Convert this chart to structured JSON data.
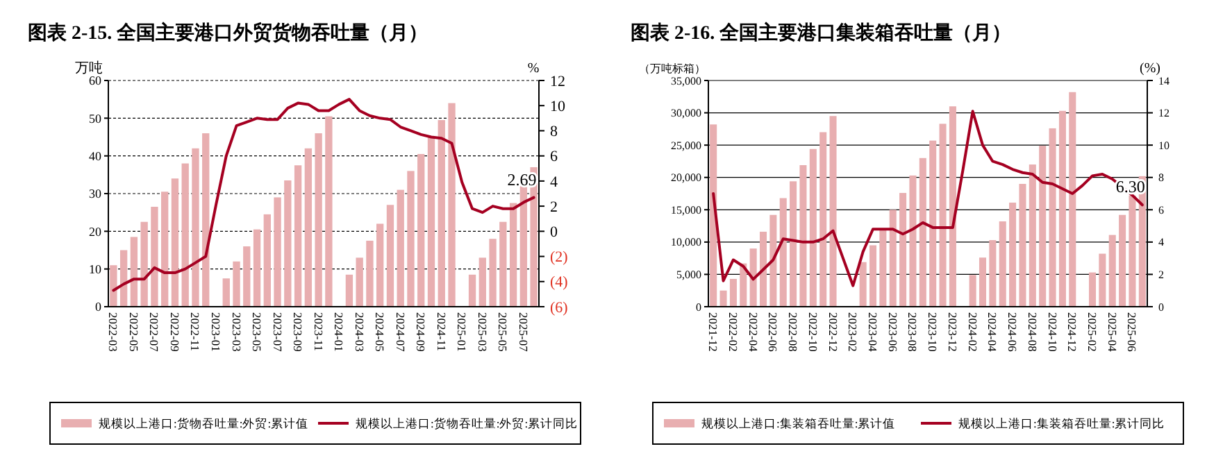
{
  "chart_data": [
    {
      "type": "bar",
      "title": "图表 2-15. 全国主要港口外贸货物吞吐量（月）",
      "ylabel": "万吨",
      "y2label": "%",
      "categories": [
        "2022-03",
        null,
        "2022-05",
        null,
        "2022-07",
        null,
        "2022-09",
        null,
        "2022-11",
        null,
        "2023-01",
        null,
        "2023-03",
        null,
        "2023-05",
        null,
        "2023-07",
        null,
        "2023-09",
        null,
        "2023-11",
        null,
        "2024-01",
        null,
        "2024-03",
        null,
        "2024-05",
        null,
        "2024-07",
        null,
        "2024-09",
        null,
        "2024-11",
        null,
        "2025-01",
        null,
        "2025-03",
        null,
        "2025-05",
        null,
        "2025-07",
        null
      ],
      "series": [
        {
          "name": "规模以上港口:货物吞吐量:外贸:累计值",
          "color": "#e8aeb0",
          "values": [
            11,
            15,
            18.5,
            22.5,
            26.5,
            30.5,
            34,
            38,
            42,
            46,
            null,
            7.5,
            12,
            16,
            20.5,
            24.5,
            29,
            33.5,
            37.5,
            42,
            46,
            50.5,
            null,
            8.5,
            13,
            17.5,
            22,
            27,
            31,
            36,
            40.5,
            45,
            49.5,
            54,
            null,
            8.5,
            13,
            18,
            22.5,
            27.5,
            32,
            37
          ]
        },
        {
          "name": "规模以上港口:货物吞吐量:外贸:累计同比",
          "type": "line",
          "axis": "y2",
          "color": "#a50021",
          "values": [
            -4.7,
            -4.2,
            -3.8,
            -3.8,
            -2.9,
            -3.3,
            -3.3,
            -3,
            -2.5,
            -2,
            2.1,
            6,
            8.4,
            8.7,
            9,
            8.9,
            8.9,
            9.8,
            10.2,
            10.1,
            9.6,
            9.6,
            10.1,
            10.5,
            9.6,
            9.2,
            9,
            8.9,
            8.3,
            8,
            7.7,
            7.5,
            7.4,
            7,
            3.9,
            1.8,
            1.5,
            2,
            1.8,
            1.8,
            2.3,
            2.69
          ]
        }
      ],
      "ylim": [
        0,
        60
      ],
      "yticks": [
        0,
        10,
        20,
        30,
        40,
        50,
        60
      ],
      "y2lim": [
        -6,
        12
      ],
      "y2ticks": [
        {
          "value": -6,
          "label": "(6)"
        },
        {
          "value": -4,
          "label": "(4)"
        },
        {
          "value": -2,
          "label": "(2)"
        },
        0,
        2,
        4,
        6,
        8,
        10,
        12
      ],
      "grid": "y",
      "legend": "bottom",
      "annotations": [
        "2.69"
      ]
    },
    {
      "type": "bar",
      "title": "图表 2-16. 全国主要港口集装箱吞吐量（月）",
      "ylabel": "（万吨标箱）",
      "y2label": "(%)",
      "categories": [
        "2021-12",
        null,
        "2022-02",
        null,
        "2022-04",
        null,
        "2022-06",
        null,
        "2022-08",
        null,
        "2022-10",
        null,
        "2022-12",
        null,
        "2023-02",
        null,
        "2023-04",
        null,
        "2023-06",
        null,
        "2023-08",
        null,
        "2023-10",
        null,
        "2023-12",
        null,
        "2024-02",
        null,
        "2024-04",
        null,
        "2024-06",
        null,
        "2024-08",
        null,
        "2024-10",
        null,
        "2024-12",
        null,
        "2025-02",
        null,
        "2025-04",
        null,
        "2025-06",
        null
      ],
      "series": [
        {
          "name": "规模以上港口:集装箱吞吐量:累计值",
          "color": "#e8aeb0",
          "values": [
            28200,
            2500,
            4300,
            6700,
            9000,
            11600,
            14200,
            16800,
            19400,
            21900,
            24400,
            27000,
            29500,
            null,
            null,
            6900,
            9500,
            12000,
            15000,
            17600,
            20300,
            23000,
            25700,
            28300,
            31000,
            null,
            4900,
            7600,
            10300,
            13200,
            16100,
            19000,
            22000,
            24900,
            27600,
            30300,
            33200,
            null,
            5300,
            8200,
            11100,
            14200,
            17200,
            20200
          ]
        },
        {
          "name": "规模以上港口:集装箱吞吐量:累计同比",
          "type": "line",
          "axis": "y2",
          "color": "#a50021",
          "values": [
            7,
            1.6,
            2.9,
            2.5,
            1.7,
            2.3,
            2.9,
            4.2,
            4.1,
            4,
            4,
            4.2,
            4.7,
            3,
            1.3,
            3.4,
            4.8,
            4.8,
            4.8,
            4.5,
            4.8,
            5.2,
            4.9,
            4.9,
            4.9,
            8.4,
            12.1,
            10,
            9,
            8.8,
            8.5,
            8.3,
            8.2,
            7.7,
            7.6,
            7.3,
            7,
            7.5,
            8.1,
            8.2,
            7.9,
            7.4,
            6.9,
            6.3
          ]
        }
      ],
      "ylim": [
        0,
        35000
      ],
      "yticks": [
        0,
        {
          "value": 5000,
          "label": "5,000"
        },
        {
          "value": 10000,
          "label": "10,000"
        },
        {
          "value": 15000,
          "label": "15,000"
        },
        {
          "value": 20000,
          "label": "20,000"
        },
        {
          "value": 25000,
          "label": "25,000"
        },
        {
          "value": 30000,
          "label": "30,000"
        },
        {
          "value": 35000,
          "label": "35,000"
        }
      ],
      "y2lim": [
        0,
        14
      ],
      "y2ticks": [
        0,
        2,
        4,
        6,
        8,
        10,
        12,
        14
      ],
      "grid": "y",
      "legend": "bottom",
      "annotations": [
        "6.30"
      ]
    }
  ]
}
